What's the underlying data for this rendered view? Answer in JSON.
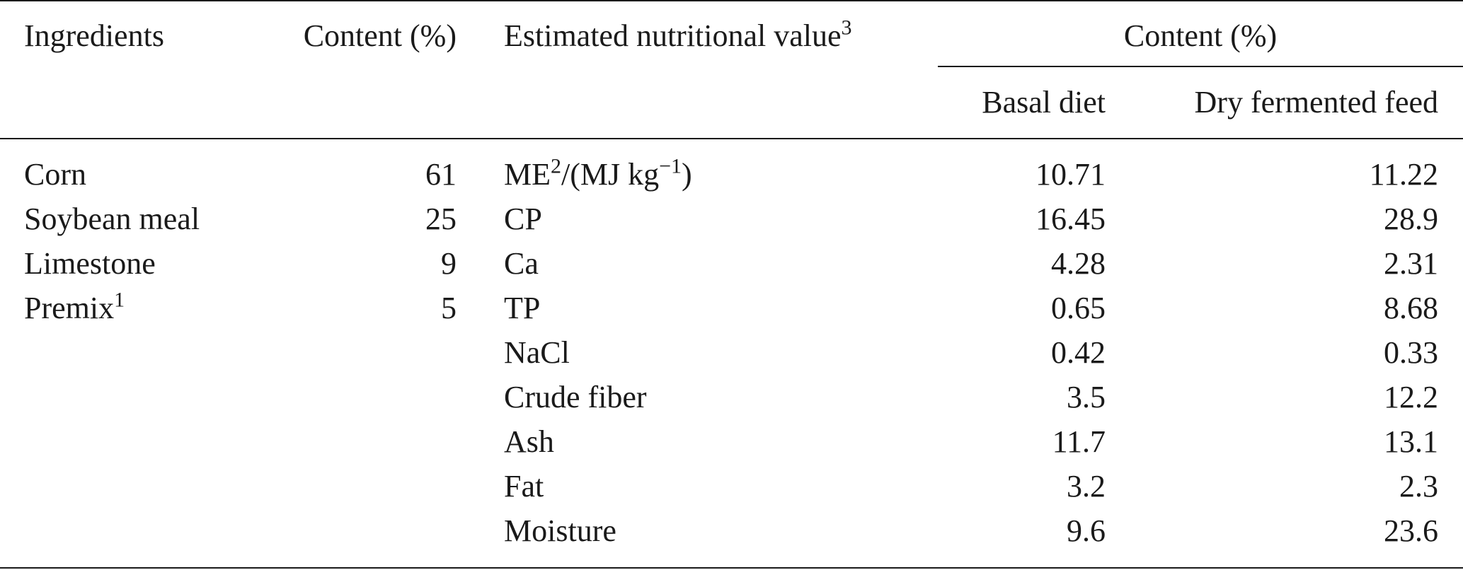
{
  "headers": {
    "ingredients": "Ingredients",
    "content_pct_left": "Content (%)",
    "nutritional_value": "Estimated nutritional value",
    "nutritional_value_sup": "3",
    "content_pct_right": "Content (%)",
    "basal_diet": "Basal diet",
    "dry_fermented_feed": "Dry fermented feed"
  },
  "ingredients": [
    {
      "name": "Corn",
      "sup": "",
      "content": "61"
    },
    {
      "name": "Soybean meal",
      "sup": "",
      "content": "25"
    },
    {
      "name": "Limestone",
      "sup": "",
      "content": "9"
    },
    {
      "name": "Premix",
      "sup": "1",
      "content": "5"
    }
  ],
  "nutrients": [
    {
      "name_pre": "ME",
      "sup1": "2",
      "name_mid": "/(MJ kg",
      "sup2": "−1",
      "name_post": ")",
      "basal": "10.71",
      "fermented": "11.22"
    },
    {
      "name_pre": "CP",
      "sup1": "",
      "name_mid": "",
      "sup2": "",
      "name_post": "",
      "basal": "16.45",
      "fermented": "28.9"
    },
    {
      "name_pre": "Ca",
      "sup1": "",
      "name_mid": "",
      "sup2": "",
      "name_post": "",
      "basal": "4.28",
      "fermented": "2.31"
    },
    {
      "name_pre": "TP",
      "sup1": "",
      "name_mid": "",
      "sup2": "",
      "name_post": "",
      "basal": "0.65",
      "fermented": "8.68"
    },
    {
      "name_pre": "NaCl",
      "sup1": "",
      "name_mid": "",
      "sup2": "",
      "name_post": "",
      "basal": "0.42",
      "fermented": "0.33"
    },
    {
      "name_pre": "Crude fiber",
      "sup1": "",
      "name_mid": "",
      "sup2": "",
      "name_post": "",
      "basal": "3.5",
      "fermented": "12.2"
    },
    {
      "name_pre": "Ash",
      "sup1": "",
      "name_mid": "",
      "sup2": "",
      "name_post": "",
      "basal": "11.7",
      "fermented": "13.1"
    },
    {
      "name_pre": "Fat",
      "sup1": "",
      "name_mid": "",
      "sup2": "",
      "name_post": "",
      "basal": "3.2",
      "fermented": "2.3"
    },
    {
      "name_pre": "Moisture",
      "sup1": "",
      "name_mid": "",
      "sup2": "",
      "name_post": "",
      "basal": "9.6",
      "fermented": "23.6"
    }
  ]
}
